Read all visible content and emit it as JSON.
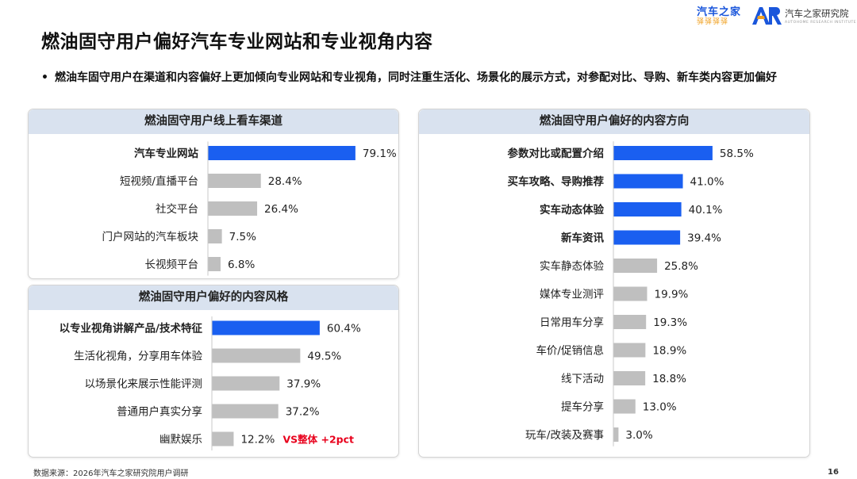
{
  "title": "燃油固守用户偏好汽车专业网站和专业视角内容",
  "logos": {
    "brand_cn": "汽车之家",
    "brand_sub": "驿驿驿驿",
    "institute_name": "汽车之家研究院",
    "institute_en": "AUTOHOME RESEARCH INSTITUTE"
  },
  "bullet": "燃油车固守用户在渠道和内容偏好上更加倾向专业网站和专业视角，同时注重生活化、场景化的展示方式，对参配对比、导购、新车类内容更加偏好",
  "colors": {
    "highlight": "#1a5ff0",
    "normal": "#bfbfbf",
    "header_bg": "#d9e2ef",
    "annotation": "#e8001c"
  },
  "footer": {
    "source": "数据来源：2026年汽车之家研究院用户调研",
    "page": "16"
  },
  "chart_data": [
    {
      "type": "bar",
      "orientation": "horizontal",
      "title": "燃油固守用户线上看车渠道",
      "categories": [
        "汽车专业网站",
        "短视频/直播平台",
        "社交平台",
        "门户网站的汽车板块",
        "长视频平台"
      ],
      "values": [
        79.1,
        28.4,
        26.4,
        7.5,
        6.8
      ],
      "value_labels": [
        "79.1%",
        "28.4%",
        "26.4%",
        "7.5%",
        "6.8%"
      ],
      "highlighted": [
        true,
        false,
        false,
        false,
        false
      ]
    },
    {
      "type": "bar",
      "orientation": "horizontal",
      "title": "燃油固守用户偏好的内容风格",
      "categories": [
        "以专业视角讲解产品/技术特征",
        "生活化视角，分享用车体验",
        "以场景化来展示性能评测",
        "普通用户真实分享",
        "幽默娱乐"
      ],
      "values": [
        60.4,
        49.5,
        37.9,
        37.2,
        12.2
      ],
      "value_labels": [
        "60.4%",
        "49.5%",
        "37.9%",
        "37.2%",
        "12.2%"
      ],
      "highlighted": [
        true,
        false,
        false,
        false,
        false
      ],
      "annotations": [
        {
          "category": "幽默娱乐",
          "text": "VS整体 +2pct"
        }
      ]
    },
    {
      "type": "bar",
      "orientation": "horizontal",
      "title": "燃油固守用户偏好的内容方向",
      "categories": [
        "参数对比或配置介绍",
        "买车攻略、导购推荐",
        "实车动态体验",
        "新车资讯",
        "实车静态体验",
        "媒体专业测评",
        "日常用车分享",
        "车价/促销信息",
        "线下活动",
        "提车分享",
        "玩车/改装及赛事"
      ],
      "values": [
        58.5,
        41.0,
        40.1,
        39.4,
        25.8,
        19.9,
        19.3,
        18.9,
        18.8,
        13.0,
        3.0
      ],
      "value_labels": [
        "58.5%",
        "41.0%",
        "40.1%",
        "39.4%",
        "25.8%",
        "19.9%",
        "19.3%",
        "18.9%",
        "18.8%",
        "13.0%",
        "3.0%"
      ],
      "highlighted": [
        true,
        true,
        true,
        true,
        false,
        false,
        false,
        false,
        false,
        false,
        false
      ]
    }
  ]
}
